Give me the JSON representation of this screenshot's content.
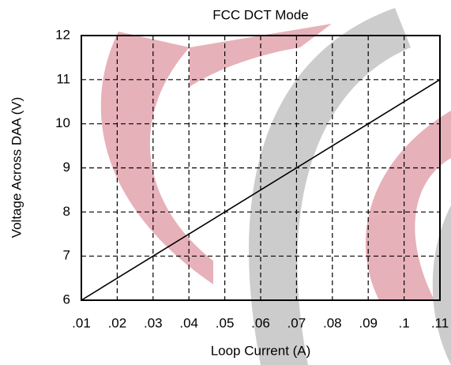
{
  "chart_data": {
    "type": "line",
    "title": "FCC DCT Mode",
    "x_label": "Loop Current (A)",
    "y_label": "Voltage Across DAA (V)",
    "x": [
      0.01,
      0.11
    ],
    "values": [
      6,
      11
    ],
    "color": "#000000",
    "xlim": [
      0.01,
      0.11
    ],
    "xticks": [
      {
        "value": 0.01,
        "label": ".01"
      },
      {
        "value": 0.02,
        "label": ".02"
      },
      {
        "value": 0.03,
        "label": ".03"
      },
      {
        "value": 0.04,
        "label": ".04"
      },
      {
        "value": 0.05,
        "label": ".05"
      },
      {
        "value": 0.06,
        "label": ".06"
      },
      {
        "value": 0.07,
        "label": ".07"
      },
      {
        "value": 0.08,
        "label": ".08"
      },
      {
        "value": 0.09,
        "label": ".09"
      },
      {
        "value": 0.1,
        "label": ".1"
      },
      {
        "value": 0.11,
        "label": ".11"
      }
    ],
    "ylim": [
      6,
      12
    ],
    "yticks": [
      6,
      7,
      8,
      9,
      10,
      11,
      12
    ],
    "grid": true
  }
}
